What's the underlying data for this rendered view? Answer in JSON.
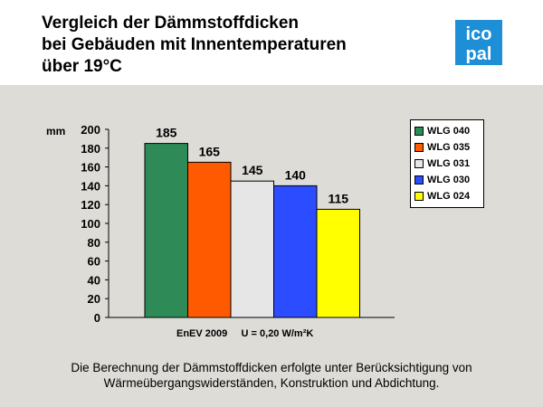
{
  "slide": {
    "title": "Vergleich der Dämmstoffdicken\nbei Gebäuden mit Innentemperaturen\nüber 19°C",
    "logo_text": [
      "ico",
      "pal"
    ],
    "footnote_line1": "Die Berechnung der Dämmstoffdicken erfolgte unter Berücksichtigung von",
    "footnote_line2": "Wärmeübergangswiderständen, Konstruktion und Abdichtung."
  },
  "colors": {
    "panel_bg": "#dddcd7",
    "logo_blue": "#1e8fd6"
  },
  "chart_data": {
    "type": "bar",
    "categories": [
      "WLG 040",
      "WLG 035",
      "WLG 031",
      "WLG 030",
      "WLG 024"
    ],
    "values": [
      185,
      165,
      145,
      140,
      115
    ],
    "colors": [
      "#2e8b57",
      "#ff5a00",
      "#e6e6e6",
      "#2b4dff",
      "#ffff00"
    ],
    "ylabel": "mm",
    "ylim": [
      0,
      200
    ],
    "yticks": [
      0,
      20,
      40,
      60,
      80,
      100,
      120,
      140,
      160,
      180,
      200
    ],
    "xlabel": "EnEV 2009     U = 0,20 W/m²K",
    "legend_position": "right",
    "grid": false,
    "data_labels": true
  }
}
